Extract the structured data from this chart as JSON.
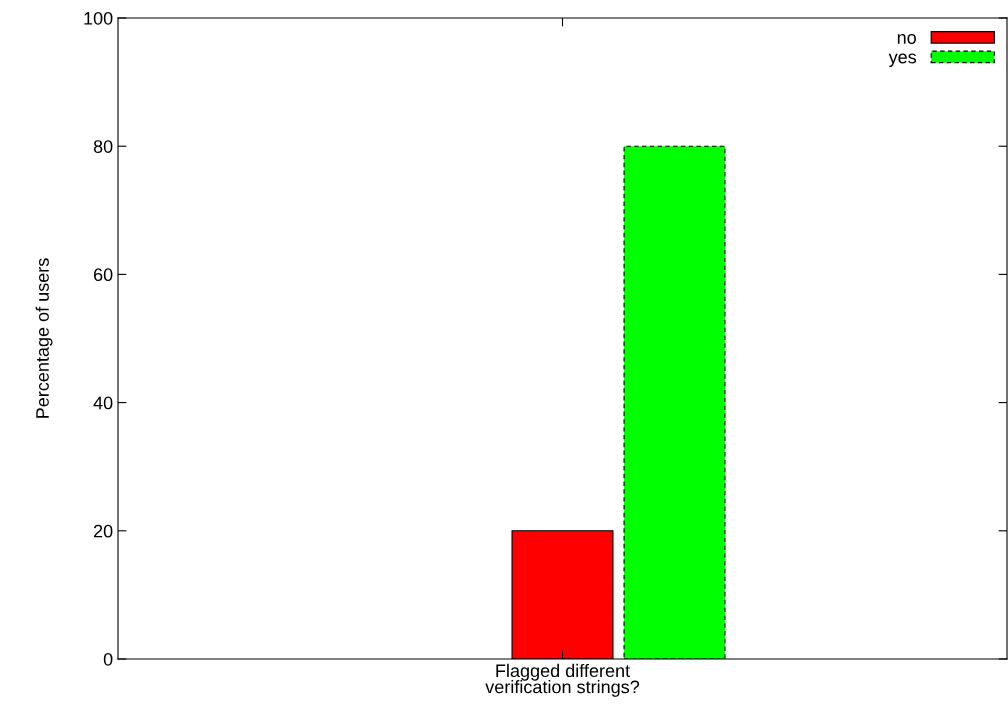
{
  "chart_data": {
    "type": "bar",
    "ylabel": "Percentage of users",
    "categories": [
      "Flagged different\nverification strings?"
    ],
    "series": [
      {
        "name": "no",
        "color": "#ff0000",
        "values": [
          20
        ],
        "line_style": "solid"
      },
      {
        "name": "yes",
        "color": "#00ff00",
        "values": [
          80
        ],
        "line_style": "dashed"
      }
    ],
    "ylim": [
      0,
      100
    ],
    "yticks": [
      0,
      20,
      40,
      60,
      80,
      100
    ],
    "grid": false,
    "legend": "top right"
  }
}
